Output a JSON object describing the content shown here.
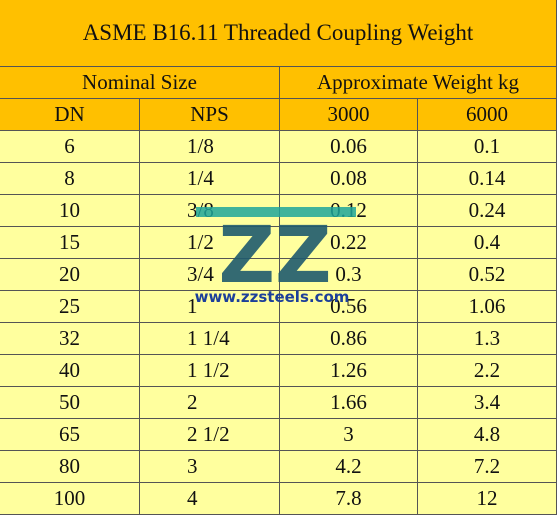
{
  "table": {
    "title": "ASME B16.11 Threaded Coupling Weight",
    "group_headers": [
      "Nominal Size",
      "Approximate Weight kg"
    ],
    "headers": [
      "DN",
      "NPS",
      "3000",
      "6000"
    ],
    "rows": [
      [
        "6",
        "1/8",
        "0.06",
        "0.1"
      ],
      [
        "8",
        "1/4",
        "0.08",
        "0.14"
      ],
      [
        "10",
        "3/8",
        "0.12",
        "0.24"
      ],
      [
        "15",
        "1/2",
        "0.22",
        "0.4"
      ],
      [
        "20",
        "3/4",
        "0.3",
        "0.52"
      ],
      [
        "25",
        "1",
        "0.56",
        "1.06"
      ],
      [
        "32",
        "1 1/4",
        "0.86",
        "1.3"
      ],
      [
        "40",
        "1 1/2",
        "1.26",
        "2.2"
      ],
      [
        "50",
        "2",
        "1.66",
        "3.4"
      ],
      [
        "65",
        "2 1/2",
        "3",
        "4.8"
      ],
      [
        "80",
        "3",
        "4.2",
        "7.2"
      ],
      [
        "100",
        "4",
        "7.8",
        "12"
      ]
    ]
  },
  "watermark": {
    "logo": "ZZ",
    "url": "www.zzsteels.com"
  }
}
